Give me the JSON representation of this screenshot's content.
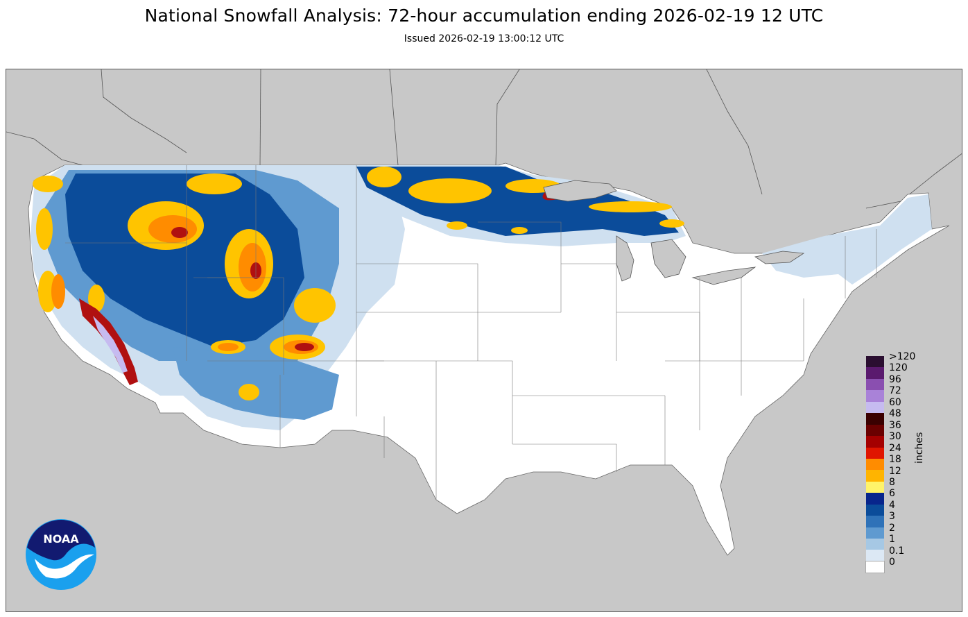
{
  "header": {
    "title": "National Snowfall Analysis: 72-hour accumulation ending 2026-02-19 12 UTC",
    "issued": "Issued 2026-02-19 13:00:12 UTC"
  },
  "legend": {
    "units": "inches",
    "bins": [
      {
        "label": ">120",
        "color": "#2a0e30"
      },
      {
        "label": "120",
        "color": "#5a1a6e"
      },
      {
        "label": "96",
        "color": "#8a4fb0"
      },
      {
        "label": "72",
        "color": "#a982d8"
      },
      {
        "label": "60",
        "color": "#c6bbf0"
      },
      {
        "label": "48",
        "color": "#3a0000"
      },
      {
        "label": "36",
        "color": "#6a0000"
      },
      {
        "label": "30",
        "color": "#a40000"
      },
      {
        "label": "24",
        "color": "#e01500"
      },
      {
        "label": "18",
        "color": "#ff8c00"
      },
      {
        "label": "12",
        "color": "#ffb400"
      },
      {
        "label": "8",
        "color": "#fff36a"
      },
      {
        "label": "6",
        "color": "#08258c"
      },
      {
        "label": "4",
        "color": "#0b4c9a"
      },
      {
        "label": "3",
        "color": "#2f72b8"
      },
      {
        "label": "2",
        "color": "#5f9ad0"
      },
      {
        "label": "1",
        "color": "#a6c8e4"
      },
      {
        "label": "0.1",
        "color": "#dce8f4"
      },
      {
        "label": "0",
        "color": "#ffffff"
      }
    ]
  },
  "logo": {
    "text": "NOAA",
    "colors": {
      "dark": "#121a70",
      "light": "#1aa0ee"
    }
  },
  "colors": {
    "background_land_outside": "#c8c8c8",
    "conus_no_snow": "#ffffff",
    "light_blue": "#cfe0f0",
    "mid_blue": "#5f9ad0",
    "dark_blue": "#0b4c9a",
    "yellow": "#ffc400",
    "orange": "#ff8c00",
    "red": "#b01010",
    "lavender": "#c6bbf0"
  }
}
